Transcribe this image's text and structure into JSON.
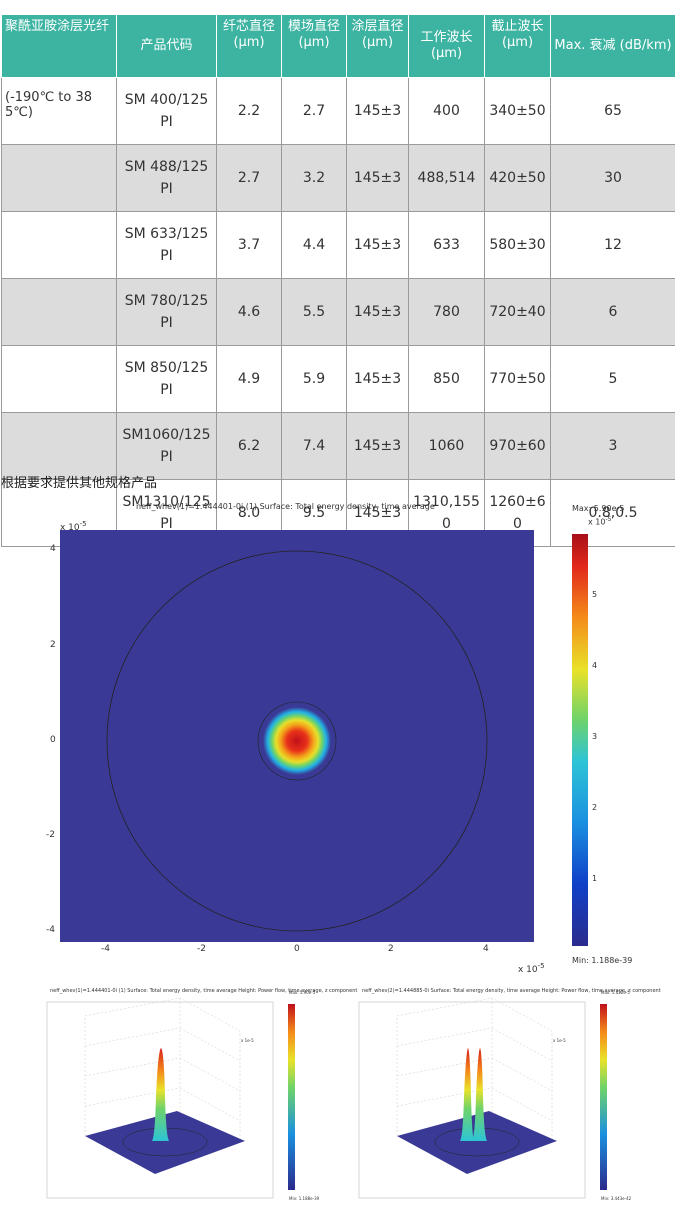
{
  "table": {
    "headers": [
      "聚酰亚胺涂层光纤",
      "产品代码",
      "纤芯直径 (μm)",
      "模场直径 (μm)",
      "涂层直径 (μm)",
      "工作波长 (μm)",
      "截止波长 (μm)",
      "Max. 衰减 (dB/km)"
    ],
    "rows": [
      [
        "(-190℃ to 385℃)",
        "SM 400/125 PI",
        "2.2",
        "2.7",
        "145±3",
        "400",
        "340±50",
        "65"
      ],
      [
        "",
        "SM 488/125 PI",
        "2.7",
        "3.2",
        "145±3",
        "488,514",
        "420±50",
        "30"
      ],
      [
        "",
        "SM 633/125 PI",
        "3.7",
        "4.4",
        "145±3",
        "633",
        "580±30",
        "12"
      ],
      [
        "",
        "SM 780/125 PI",
        "4.6",
        "5.5",
        "145±3",
        "780",
        "720±40",
        "6"
      ],
      [
        "",
        "SM 850/125 PI",
        "4.9",
        "5.9",
        "145±3",
        "850",
        "770±50",
        "5"
      ],
      [
        "",
        "SM1060/125 PI",
        "6.2",
        "7.4",
        "145±3",
        "1060",
        "970±60",
        "3"
      ],
      [
        "",
        "SM1310/125 PI",
        "8.0",
        "9.5",
        "145±3",
        "1310,1550",
        "1260±60",
        "0.8,0.5"
      ]
    ]
  },
  "note": "根据要求提供其他规格产品",
  "main_plot": {
    "title": "neff_whev(1)=1.444401-0i (1)    Surface: Total energy density, time average",
    "scale_label": "x 10",
    "scale_exp": "-5",
    "x_ticks": [
      "-4",
      "-2",
      "0",
      "2",
      "4"
    ],
    "y_ticks": [
      "4",
      "2",
      "0",
      "-2",
      "-4"
    ],
    "colorbar_max": "Max: 5.90e-5",
    "colorbar_scale": "x 10",
    "colorbar_scale_exp": "-5",
    "colorbar_ticks": [
      "5",
      "4",
      "3",
      "2",
      "1"
    ],
    "colorbar_min": "Min: 1.188e-39",
    "colors": {
      "background": "#2f2f8f",
      "plot_area": "#3a3a96"
    }
  },
  "small_plot_left": {
    "title": "neff_whev(1)=1.444401-0i (1)    Surface: Total energy density, time average   Height: Power flow, time average, z component",
    "colorbar_max": "Max: 5.90e-5",
    "colorbar_min": "Min: 1.188e-39",
    "axis_label": "x 1e-5"
  },
  "small_plot_right": {
    "title": "neff_whev(2)=1.444885-0i    Surface: Total energy density, time average   Height: Power flow, time average, z component",
    "colorbar_max": "Max: 5.022e-5",
    "colorbar_min": "Min: 3.443e-42",
    "axis_label": "x 1e-5"
  }
}
